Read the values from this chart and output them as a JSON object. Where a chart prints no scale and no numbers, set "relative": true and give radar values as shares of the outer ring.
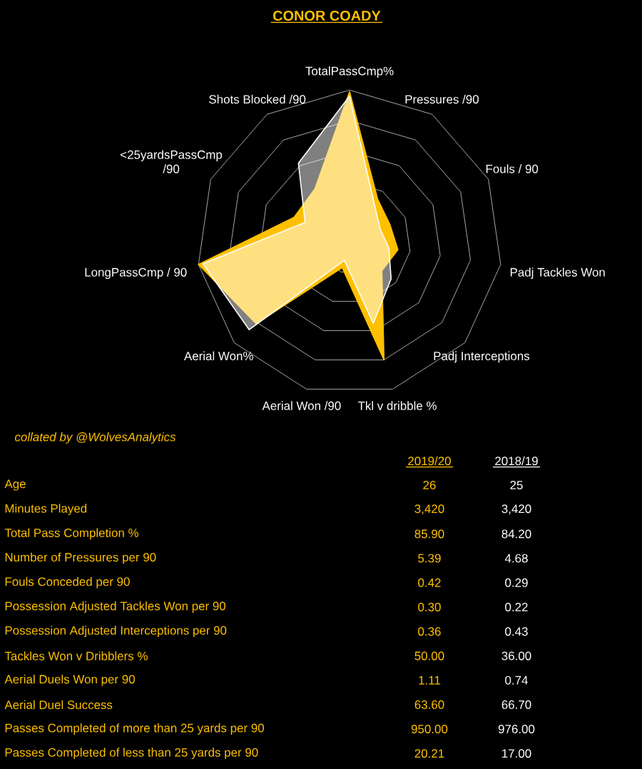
{
  "chart_data": [
    {
      "type": "radar",
      "title": "CONOR COADY",
      "relative": true,
      "grid": true,
      "categories": [
        "TotalPassCmp%",
        "Pressures /90",
        "Fouls / 90",
        "Padj Tackles Won",
        "Padj Interceptions",
        "Tkl v dribble %",
        "Aerial Won /90",
        "Aerial Won%",
        "LongPassCmp / 90",
        "<25yardsPassCmp /90",
        "Shots Blocked /90"
      ],
      "series": [
        {
          "color": "#ffc000",
          "values": [
            0.99,
            0.34,
            0.29,
            0.32,
            0.28,
            0.8,
            0.17,
            0.81,
            1.0,
            0.4,
            0.42
          ]
        },
        {
          "color": "#ffffff",
          "values": [
            0.96,
            0.3,
            0.22,
            0.26,
            0.36,
            0.55,
            0.12,
            0.87,
            0.97,
            0.32,
            0.62
          ]
        }
      ]
    },
    {
      "type": "other",
      "annotations": [
        "collated by @WolvesAnalytics"
      ],
      "categories": [
        "Age",
        "Minutes Played",
        "Total Pass Completion %",
        "Number of Pressures per 90",
        "Fouls Conceded per 90",
        "Possession Adjusted Tackles Won per 90",
        "Possession Adjusted Interceptions per 90",
        "Tackles Won v Dribblers %",
        "Aerial Duels Won per 90",
        "Aerial Duel Success",
        "Passes Completed of more than 25 yards per 90",
        "Passes Completed of less than 25 yards per 90"
      ],
      "series": [
        {
          "name": "2019/20",
          "color": "#ffc000",
          "values": [
            26,
            3420,
            85.9,
            5.39,
            0.42,
            0.3,
            0.36,
            50,
            1.11,
            63.6,
            950,
            20.21
          ],
          "value_labels": [
            "26",
            "3,420",
            "85.90",
            "5.39",
            "0.42",
            "0.30",
            "0.36",
            "50.00",
            "1.11",
            "63.60",
            "950.00",
            "20.21"
          ]
        },
        {
          "name": "2018/19",
          "color": "#ffffff",
          "values": [
            25,
            3420,
            84.2,
            4.68,
            0.29,
            0.22,
            0.43,
            36,
            0.74,
            66.7,
            976,
            17
          ],
          "value_labels": [
            "25",
            "3,420",
            "84.20",
            "4.68",
            "0.29",
            "0.22",
            "0.43",
            "36.00",
            "0.74",
            "66.70",
            "976.00",
            "17.00"
          ]
        }
      ]
    }
  ]
}
